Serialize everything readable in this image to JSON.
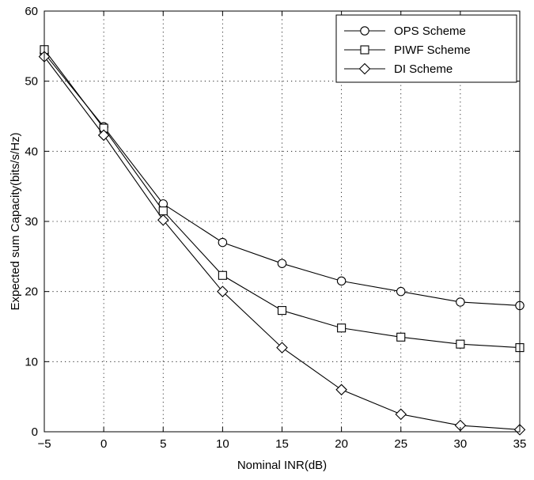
{
  "chart_data": {
    "type": "line",
    "xlabel": "Nominal INR(dB)",
    "ylabel": "Expected sum Capacity(bits/s/Hz)",
    "xlim": [
      -5,
      35
    ],
    "ylim": [
      0,
      60
    ],
    "xticks": [
      -5,
      0,
      5,
      10,
      15,
      20,
      25,
      30,
      35
    ],
    "yticks": [
      0,
      10,
      20,
      30,
      40,
      50,
      60
    ],
    "xtick_labels": [
      "−5",
      "0",
      "5",
      "10",
      "15",
      "20",
      "25",
      "30",
      "35"
    ],
    "ytick_labels": [
      "0",
      "10",
      "20",
      "30",
      "40",
      "50",
      "60"
    ],
    "grid": true,
    "legend_position": "top-right",
    "x": [
      -5,
      0,
      5,
      10,
      15,
      20,
      25,
      30,
      35
    ],
    "series": [
      {
        "name": "OPS Scheme",
        "marker": "circle",
        "values": [
          54.0,
          43.5,
          32.5,
          27.0,
          24.0,
          21.5,
          20.0,
          18.5,
          18.0
        ]
      },
      {
        "name": "PIWF Scheme",
        "marker": "square",
        "values": [
          54.5,
          43.3,
          31.5,
          22.3,
          17.3,
          14.8,
          13.5,
          12.5,
          12.0
        ]
      },
      {
        "name": "DI Scheme",
        "marker": "diamond",
        "values": [
          53.5,
          42.3,
          30.2,
          20.0,
          12.0,
          6.0,
          2.5,
          0.9,
          0.3
        ]
      }
    ],
    "line_color": "#000000"
  }
}
